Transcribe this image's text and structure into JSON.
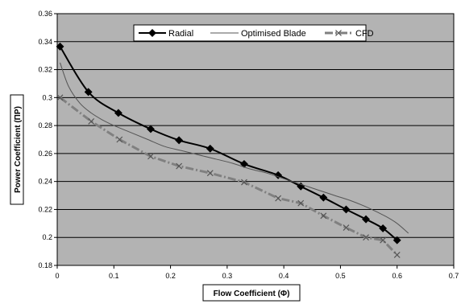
{
  "chart_data": {
    "type": "line",
    "xlabel": "Flow Coefficient (Φ)",
    "ylabel": "Power Coefficient (ΠP)",
    "xlim": [
      0,
      0.7
    ],
    "ylim": [
      0.18,
      0.36
    ],
    "x_ticks": [
      "0",
      "0.1",
      "0.2",
      "0.3",
      "0.4",
      "0.5",
      "0.6",
      "0.7"
    ],
    "y_ticks": [
      "0.18",
      "0.2",
      "0.22",
      "0.24",
      "0.26",
      "0.28",
      "0.3",
      "0.32",
      "0.34",
      "0.36"
    ],
    "grid": "horizontal",
    "legend_position": "top",
    "plot_background": "#b3b3b3",
    "series": [
      {
        "name": "Radial",
        "color": "#000000",
        "marker": "diamond",
        "line_style": "solid",
        "x": [
          0.005,
          0.055,
          0.108,
          0.165,
          0.215,
          0.27,
          0.33,
          0.39,
          0.43,
          0.47,
          0.51,
          0.545,
          0.575,
          0.6
        ],
        "y": [
          0.3365,
          0.304,
          0.289,
          0.2775,
          0.2695,
          0.2635,
          0.2525,
          0.2445,
          0.2365,
          0.2285,
          0.22,
          0.213,
          0.2065,
          0.198
        ]
      },
      {
        "name": "Optimised Blade",
        "color": "#555555",
        "marker": "none",
        "line_style": "thin",
        "x": [
          0.005,
          0.02,
          0.04,
          0.06,
          0.08,
          0.1,
          0.13,
          0.16,
          0.19,
          0.22,
          0.25,
          0.28,
          0.31,
          0.34,
          0.37,
          0.4,
          0.43,
          0.46,
          0.49,
          0.52,
          0.55,
          0.58,
          0.6,
          0.62
        ],
        "y": [
          0.325,
          0.308,
          0.296,
          0.289,
          0.284,
          0.28,
          0.275,
          0.27,
          0.265,
          0.262,
          0.259,
          0.256,
          0.253,
          0.249,
          0.246,
          0.242,
          0.238,
          0.234,
          0.23,
          0.226,
          0.221,
          0.215,
          0.21,
          0.203
        ]
      },
      {
        "name": "CFD",
        "color": "#808080",
        "marker": "x",
        "line_style": "dash-dot",
        "x": [
          0.005,
          0.06,
          0.11,
          0.165,
          0.215,
          0.27,
          0.33,
          0.39,
          0.43,
          0.47,
          0.51,
          0.545,
          0.575,
          0.6
        ],
        "y": [
          0.3,
          0.283,
          0.27,
          0.258,
          0.251,
          0.246,
          0.2395,
          0.228,
          0.2245,
          0.2155,
          0.207,
          0.2,
          0.198,
          0.1875
        ]
      }
    ]
  }
}
